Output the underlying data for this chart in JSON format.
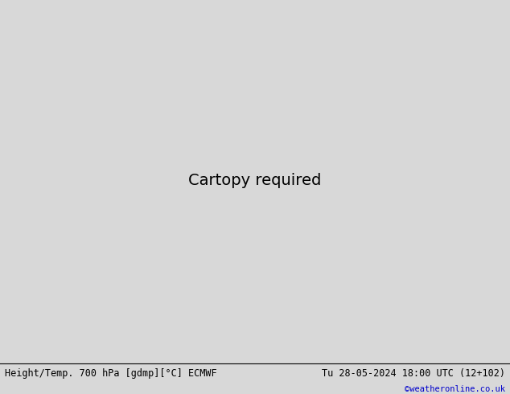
{
  "title_left": "Height/Temp. 700 hPa [gdmp][°C] ECMWF",
  "title_right": "Tu 28-05-2024 18:00 UTC (12+102)",
  "copyright": "©weatheronline.co.uk",
  "bg_color": "#d8d8d8",
  "land_color_green": "#aaddaa",
  "land_color_gray": "#c8c8c8",
  "ocean_color": "#d8d8d8",
  "border_color": "#909090",
  "contour_color_black": "#000000",
  "contour_color_pink": "#ff00bb",
  "contour_color_orange": "#ff8800",
  "contour_color_red": "#dd0000",
  "figsize": [
    6.34,
    4.9
  ],
  "dpi": 100,
  "extent": [
    80,
    185,
    -22,
    62
  ],
  "bottom_bar_color": "#ffffff",
  "copyright_color": "#0000cc",
  "title_fontsize": 8.5,
  "copyright_fontsize": 7.5
}
